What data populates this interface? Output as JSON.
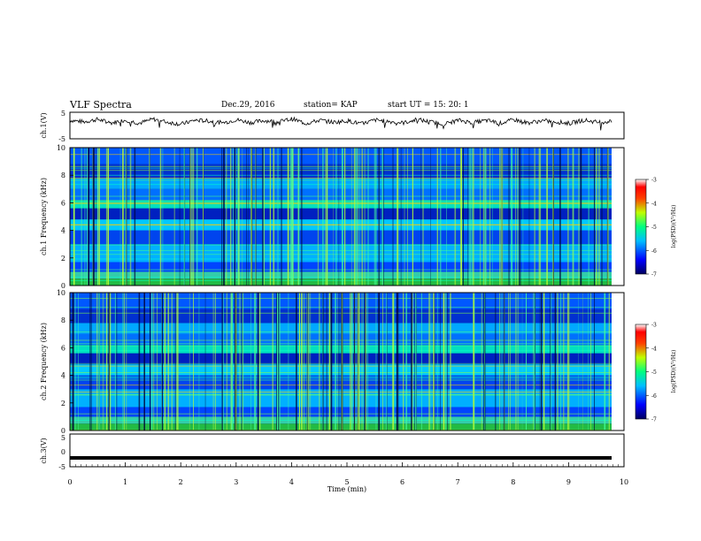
{
  "header": {
    "title": "VLF Spectra",
    "date": "Dec.29, 2016",
    "station": "station= KAP",
    "start": "start UT = 15: 20: 1"
  },
  "colorbar_1": {
    "label": "log(PSD)(V²/Hz)",
    "ticks": [
      "-3",
      "-4",
      "-5",
      "-6",
      "-7"
    ]
  },
  "colorbar_2": {
    "label": "log(PSD)(V²/Hz)",
    "ticks": [
      "-3",
      "-4",
      "-5",
      "-6",
      "-7"
    ]
  },
  "chart_data": [
    {
      "type": "line",
      "panel": "ch1-waveform",
      "ylabel": "ch.1(V)",
      "ylim": [
        -5,
        5
      ],
      "yticks": [
        "5",
        "-5"
      ],
      "xlim": [
        0,
        10
      ],
      "series": [
        {
          "values": [
            2.0,
            1.4,
            2.3,
            1.0,
            2.1,
            0.9,
            2.4,
            1.3,
            0.5,
            2.0,
            1.7,
            1.0,
            2.2,
            1.1,
            1.9,
            1.4,
            2.5,
            0.8,
            2.0,
            1.2,
            1.8,
            0.6,
            2.1,
            1.5,
            1.0,
            2.3,
            1.3,
            0.7,
            2.0,
            1.1,
            1.9,
            0.9,
            2.2,
            1.0,
            1.8,
            1.4,
            0.8,
            2.1,
            1.2,
            1.6
          ]
        }
      ]
    },
    {
      "type": "heatmap",
      "panel": "ch1-spectrogram",
      "ylabel": "ch.1 Frequency (kHz)",
      "xlim": [
        0,
        10
      ],
      "ylim": [
        0,
        10
      ],
      "yticks": [
        "0",
        "2",
        "4",
        "6",
        "8",
        "10"
      ],
      "colorbar_range": [
        -7,
        -3
      ]
    },
    {
      "type": "heatmap",
      "panel": "ch2-spectrogram",
      "ylabel": "ch.2 Frequency (kHz)",
      "xlim": [
        0,
        10
      ],
      "ylim": [
        0,
        10
      ],
      "yticks": [
        "0",
        "2",
        "4",
        "6",
        "8",
        "10"
      ],
      "colorbar_range": [
        -7,
        -3
      ]
    },
    {
      "type": "line",
      "panel": "ch3-waveform",
      "ylabel": "ch.3(V)",
      "xlabel": "Time (min)",
      "ylim": [
        -5,
        5
      ],
      "yticks": [
        "5",
        "0",
        "-5"
      ],
      "xlim": [
        0,
        10
      ],
      "xticks": [
        "0",
        "1",
        "2",
        "3",
        "4",
        "5",
        "6",
        "7",
        "8",
        "9",
        "10"
      ],
      "series": [
        {
          "values": [
            -2.3,
            -2.3
          ]
        }
      ]
    }
  ]
}
